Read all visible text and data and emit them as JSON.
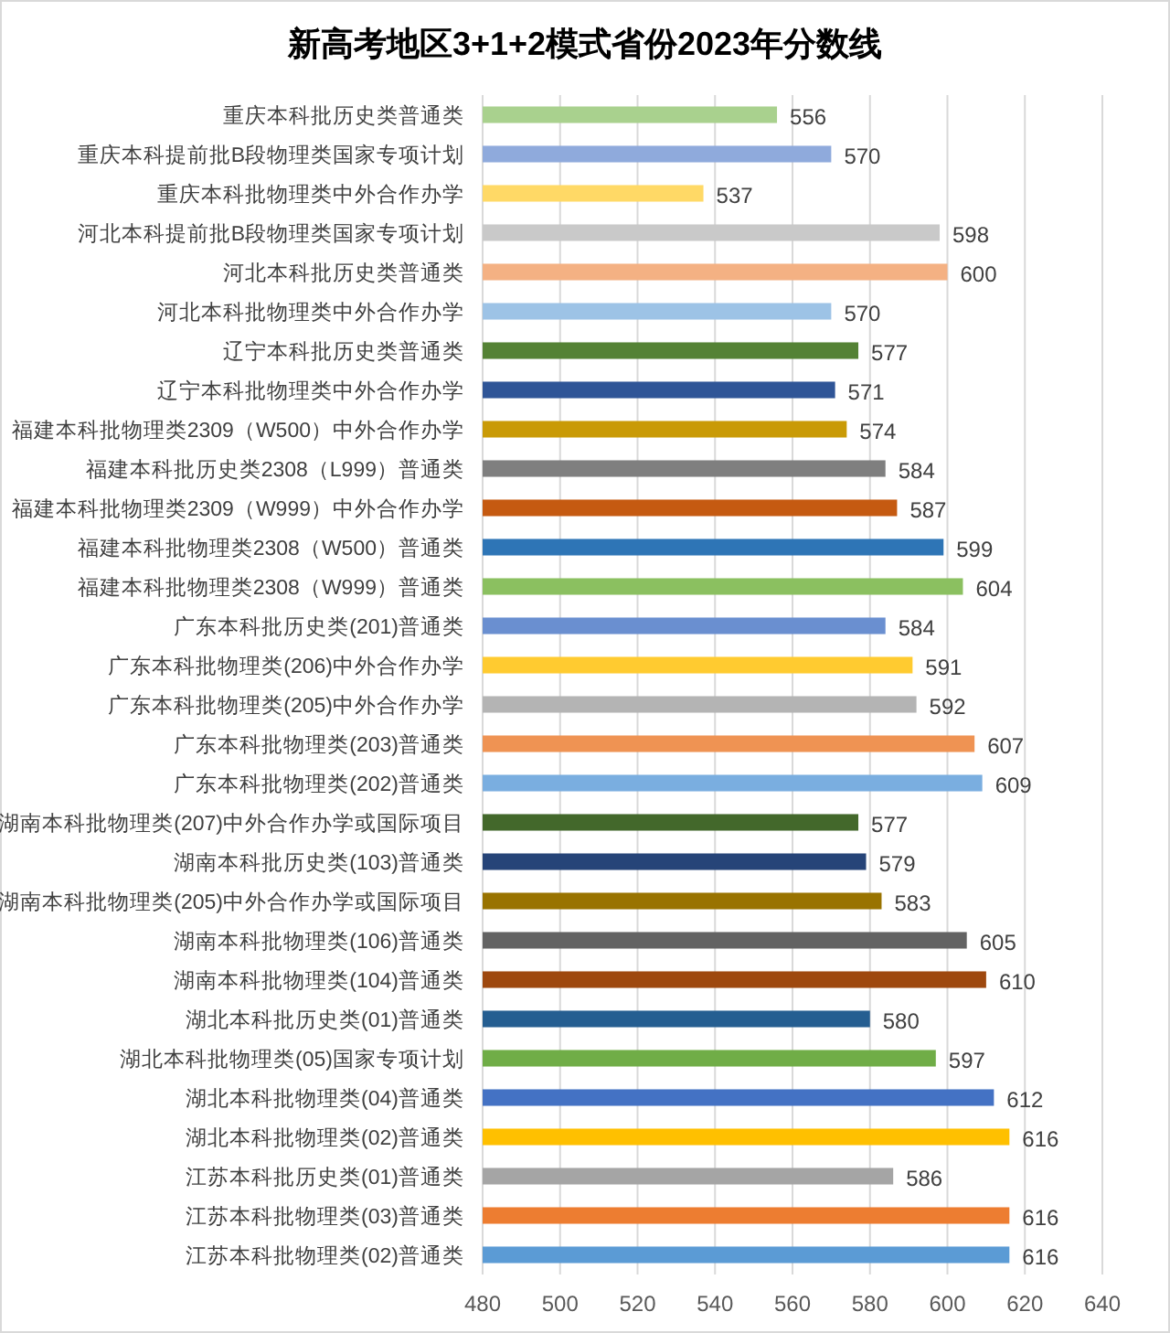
{
  "chart_data": {
    "type": "bar",
    "orientation": "horizontal",
    "title": "新高考地区3+1+2模式省份2023年分数线",
    "categories": [
      "重庆本科批历史类普通类",
      "重庆本科提前批B段物理类国家专项计划",
      "重庆本科批物理类中外合作办学",
      "河北本科提前批B段物理类国家专项计划",
      "河北本科批历史类普通类",
      "河北本科批物理类中外合作办学",
      "辽宁本科批历史类普通类",
      "辽宁本科批物理类中外合作办学",
      "福建本科批物理类2309（W500）中外合作办学",
      "福建本科批历史类2308（L999）普通类",
      "福建本科批物理类2309（W999）中外合作办学",
      "福建本科批物理类2308（W500）普通类",
      "福建本科批物理类2308（W999）普通类",
      "广东本科批历史类(201)普通类",
      "广东本科批物理类(206)中外合作办学",
      "广东本科批物理类(205)中外合作办学",
      "广东本科批物理类(203)普通类",
      "广东本科批物理类(202)普通类",
      "湖南本科批物理类(207)中外合作办学或国际项目",
      "湖南本科批历史类(103)普通类",
      "湖南本科批物理类(205)中外合作办学或国际项目",
      "湖南本科批物理类(106)普通类",
      "湖南本科批物理类(104)普通类",
      "湖北本科批历史类(01)普通类",
      "湖北本科批物理类(05)国家专项计划",
      "湖北本科批物理类(04)普通类",
      "湖北本科批物理类(02)普通类",
      "江苏本科批历史类(01)普通类",
      "江苏本科批物理类(03)普通类",
      "江苏本科批物理类(02)普通类"
    ],
    "values": [
      556,
      570,
      537,
      598,
      600,
      570,
      577,
      571,
      574,
      584,
      587,
      599,
      604,
      584,
      591,
      592,
      607,
      609,
      577,
      579,
      583,
      605,
      610,
      580,
      597,
      612,
      616,
      586,
      616,
      616
    ],
    "colors": [
      "#a9d18e",
      "#8faadc",
      "#ffd966",
      "#c9c9c9",
      "#f4b183",
      "#9dc3e6",
      "#548235",
      "#2f5597",
      "#c99a06",
      "#7f7f7f",
      "#c55a11",
      "#2e75b6",
      "#8bc060",
      "#6a8fd0",
      "#ffcb30",
      "#b4b4b4",
      "#ef9353",
      "#7aaee0",
      "#43682b",
      "#264478",
      "#997300",
      "#636363",
      "#9e480e",
      "#255e91",
      "#70ad47",
      "#4472c4",
      "#ffc000",
      "#a5a5a5",
      "#ed7d31",
      "#5b9bd5"
    ],
    "xlim": [
      480,
      640
    ],
    "xticks": [
      480,
      500,
      520,
      540,
      560,
      580,
      600,
      620,
      640
    ],
    "grid": "x",
    "data_labels": true
  }
}
